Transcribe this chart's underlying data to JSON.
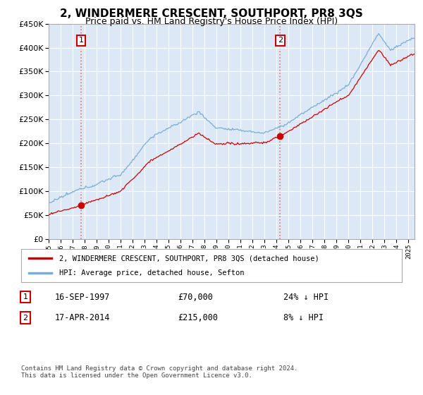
{
  "title": "2, WINDERMERE CRESCENT, SOUTHPORT, PR8 3QS",
  "subtitle": "Price paid vs. HM Land Registry's House Price Index (HPI)",
  "legend_line1": "2, WINDERMERE CRESCENT, SOUTHPORT, PR8 3QS (detached house)",
  "legend_line2": "HPI: Average price, detached house, Sefton",
  "footer": "Contains HM Land Registry data © Crown copyright and database right 2024.\nThis data is licensed under the Open Government Licence v3.0.",
  "sale1_date": "16-SEP-1997",
  "sale1_price": 70000,
  "sale1_label": "24% ↓ HPI",
  "sale2_date": "17-APR-2014",
  "sale2_price": 215000,
  "sale2_label": "8% ↓ HPI",
  "sale1_year": 1997.71,
  "sale2_year": 2014.29,
  "ylim_min": 0,
  "ylim_max": 450000,
  "xlim_min": 1995.0,
  "xlim_max": 2025.5,
  "red_color": "#cc0000",
  "blue_color": "#7aadd4",
  "dashed_color": "#e87070",
  "bg_color": "#ffffff",
  "plot_bg_color": "#dce8f5",
  "grid_color": "#ffffff",
  "title_fontsize": 11,
  "subtitle_fontsize": 9
}
